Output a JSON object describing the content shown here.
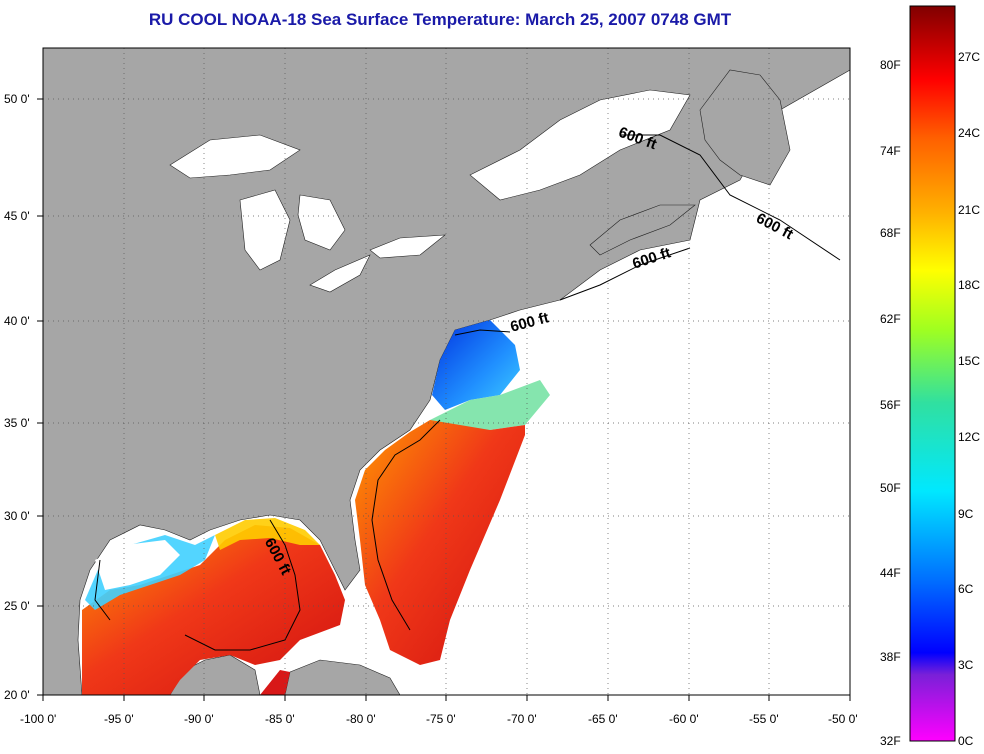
{
  "title": "RU COOL  NOAA-18  Sea Surface Temperature:  March 25, 2007 0748 GMT",
  "longitude_ticks": [
    "-100 0'",
    "-95 0'",
    "-90 0'",
    "-85 0'",
    "-80 0'",
    "-75 0'",
    "-70 0'",
    "-65 0'",
    "-60 0'",
    "-55 0'",
    "-50 0'"
  ],
  "latitude_ticks": [
    "50 0'",
    "45 0'",
    "40 0'",
    "35 0'",
    "30 0'",
    "25 0'",
    "20 0'"
  ],
  "depth_contour_label": "600 ft",
  "colorbar": {
    "fahrenheit": [
      "80F",
      "74F",
      "68F",
      "62F",
      "56F",
      "50F",
      "44F",
      "38F",
      "32F"
    ],
    "celsius": [
      "27C",
      "24C",
      "21C",
      "18C",
      "15C",
      "12C",
      "9C",
      "6C",
      "3C",
      "0C"
    ]
  },
  "colors": {
    "land": "#a6a6a6",
    "no_data": "#ffffff",
    "warm": "#e8301a",
    "cold": "#1a3ad8",
    "title": "#1a1aa8"
  }
}
